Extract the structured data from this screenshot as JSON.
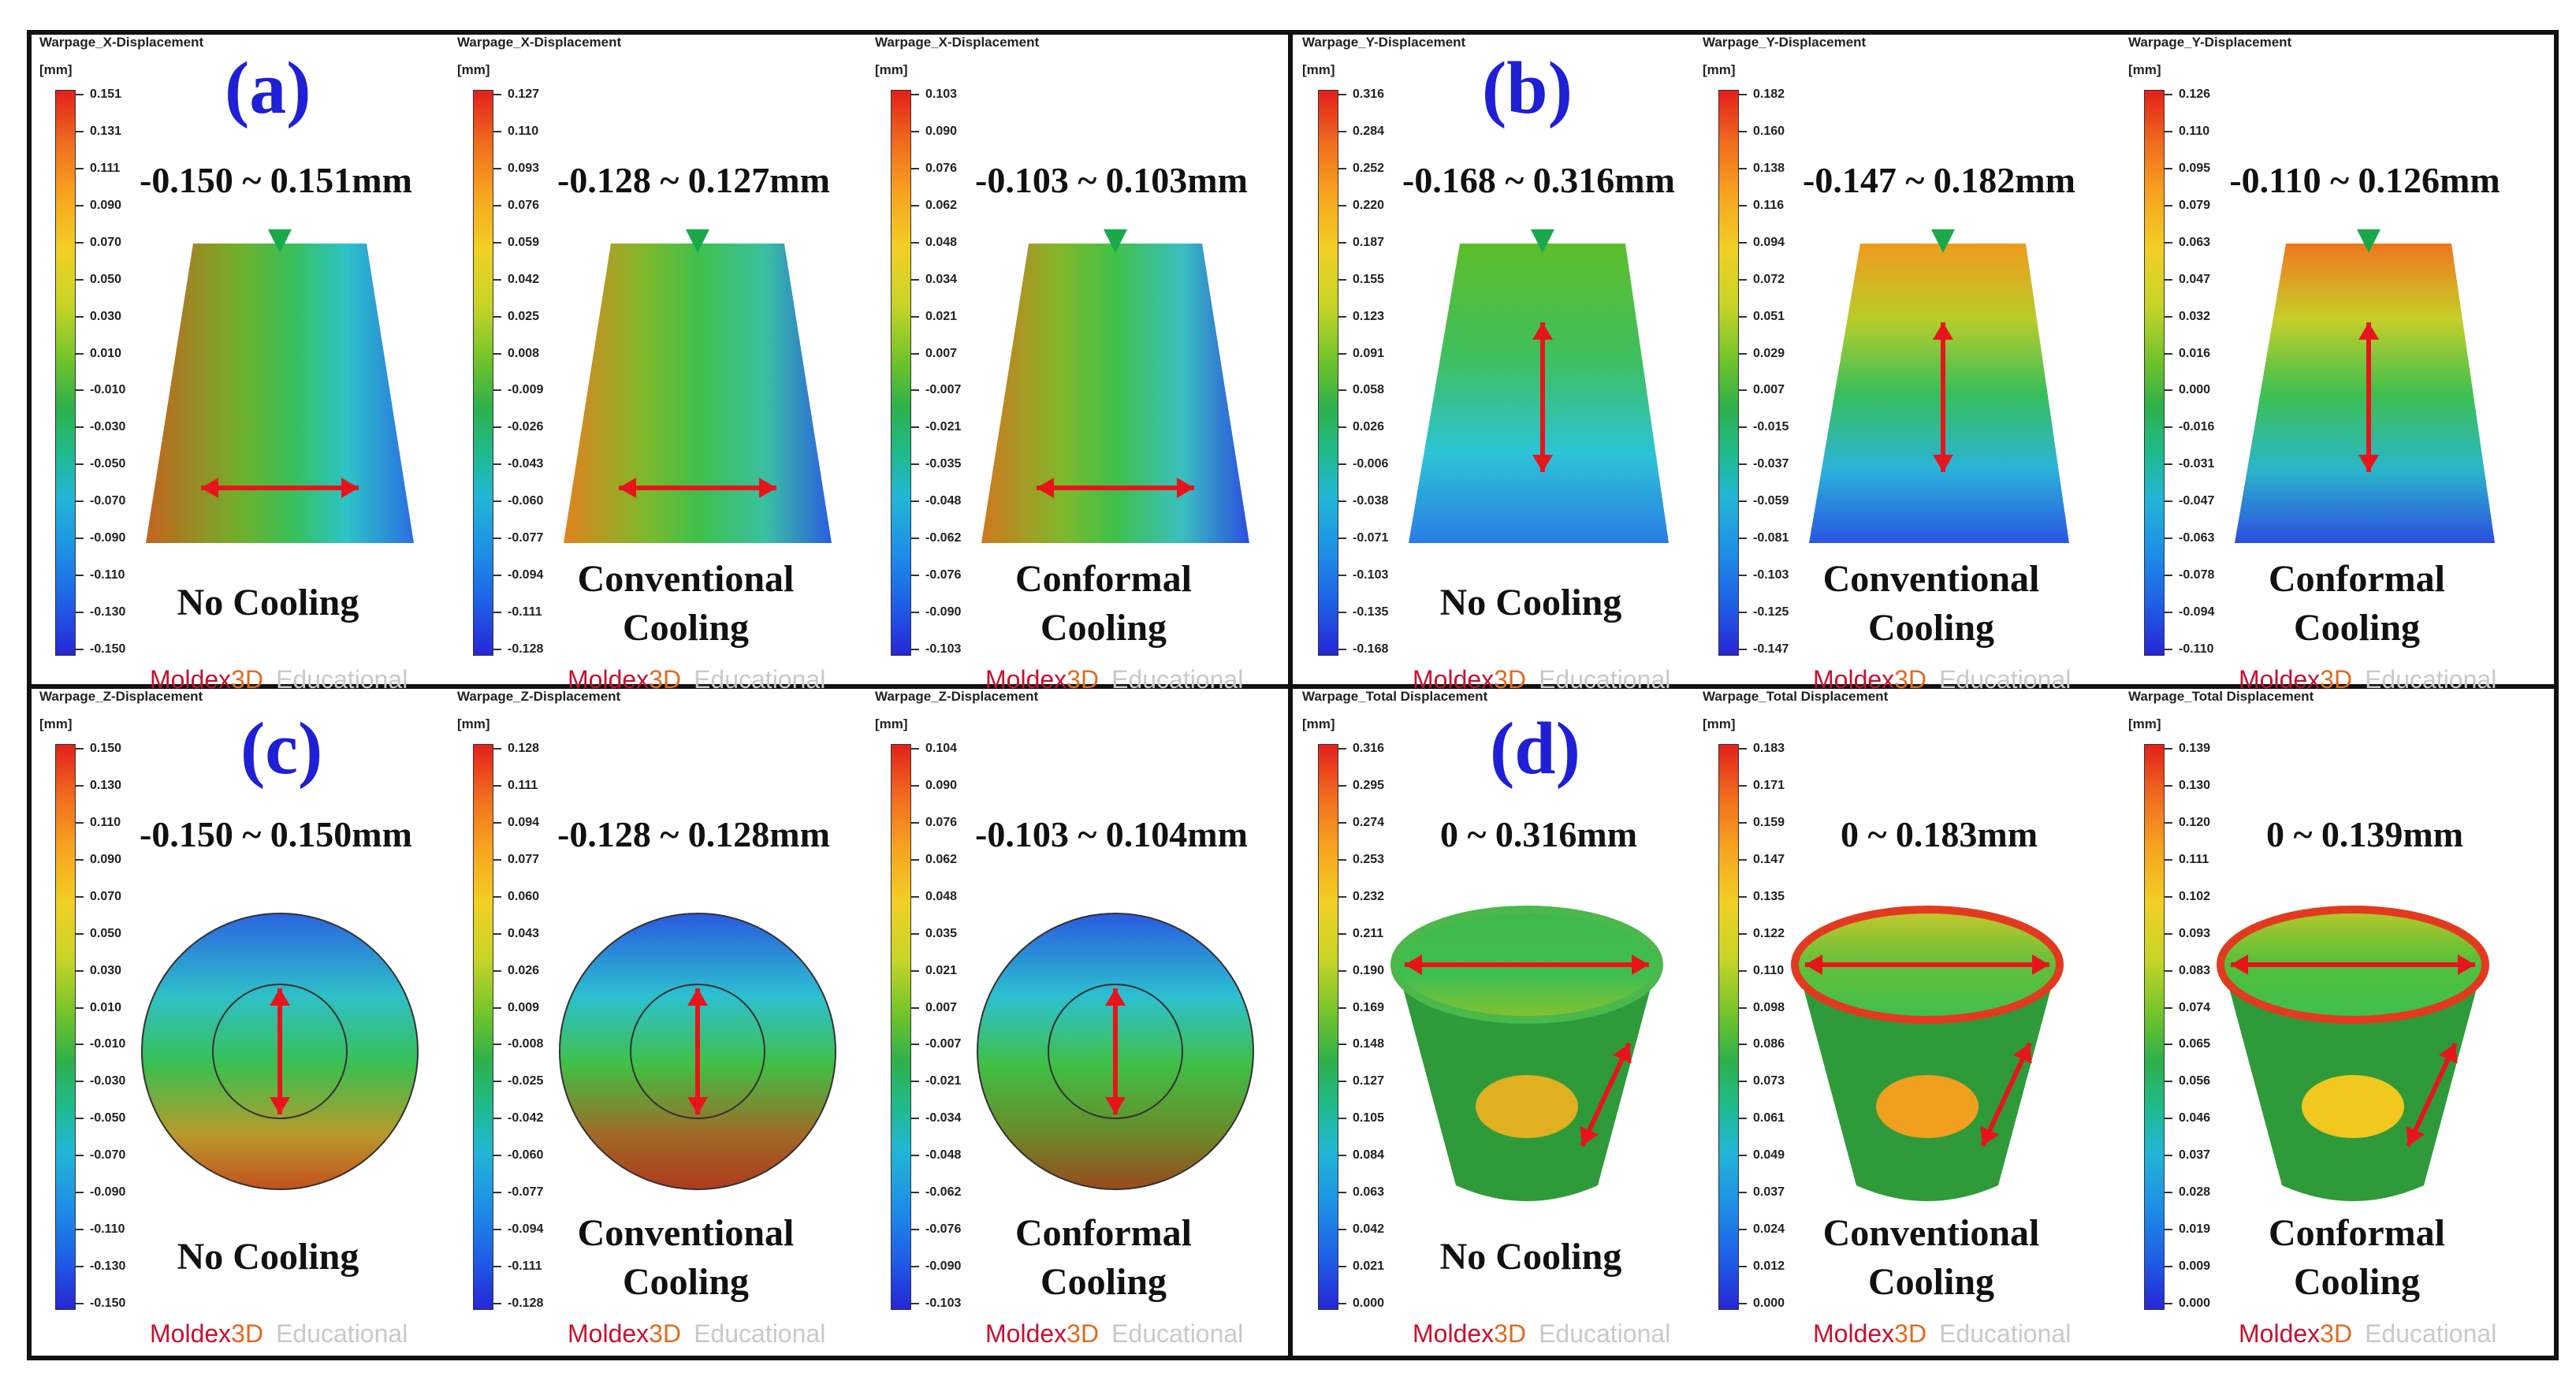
{
  "unit": "[mm]",
  "brand": {
    "main": "Moldex",
    "suffix": "3D",
    "edition": "Educational"
  },
  "quadrants": [
    {
      "letter": "(a)",
      "panels": [
        {
          "title": "Warpage_X-Displacement",
          "range": "-0.150 ~ 0.151mm",
          "label1": "No Cooling",
          "label2": "",
          "ticks": [
            "0.151",
            "0.131",
            "0.111",
            "0.090",
            "0.070",
            "0.050",
            "0.030",
            "0.010",
            "-0.010",
            "-0.030",
            "-0.050",
            "-0.070",
            "-0.090",
            "-0.110",
            "-0.130",
            "-0.150"
          ]
        },
        {
          "title": "Warpage_X-Displacement",
          "range": "-0.128 ~ 0.127mm",
          "label1": "Conventional",
          "label2": "Cooling",
          "ticks": [
            "0.127",
            "0.110",
            "0.093",
            "0.076",
            "0.059",
            "0.042",
            "0.025",
            "0.008",
            "-0.009",
            "-0.026",
            "-0.043",
            "-0.060",
            "-0.077",
            "-0.094",
            "-0.111",
            "-0.128"
          ]
        },
        {
          "title": "Warpage_X-Displacement",
          "range": "-0.103 ~ 0.103mm",
          "label1": "Conformal",
          "label2": "Cooling",
          "ticks": [
            "0.103",
            "0.090",
            "0.076",
            "0.062",
            "0.048",
            "0.034",
            "0.021",
            "0.007",
            "-0.007",
            "-0.021",
            "-0.035",
            "-0.048",
            "-0.062",
            "-0.076",
            "-0.090",
            "-0.103"
          ]
        }
      ]
    },
    {
      "letter": "(b)",
      "panels": [
        {
          "title": "Warpage_Y-Displacement",
          "range": "-0.168 ~ 0.316mm",
          "label1": "No Cooling",
          "label2": "",
          "ticks": [
            "0.316",
            "0.284",
            "0.252",
            "0.220",
            "0.187",
            "0.155",
            "0.123",
            "0.091",
            "0.058",
            "0.026",
            "-0.006",
            "-0.038",
            "-0.071",
            "-0.103",
            "-0.135",
            "-0.168"
          ]
        },
        {
          "title": "Warpage_Y-Displacement",
          "range": "-0.147 ~ 0.182mm",
          "label1": "Conventional",
          "label2": "Cooling",
          "ticks": [
            "0.182",
            "0.160",
            "0.138",
            "0.116",
            "0.094",
            "0.072",
            "0.051",
            "0.029",
            "0.007",
            "-0.015",
            "-0.037",
            "-0.059",
            "-0.081",
            "-0.103",
            "-0.125",
            "-0.147"
          ]
        },
        {
          "title": "Warpage_Y-Displacement",
          "range": "-0.110 ~ 0.126mm",
          "label1": "Conformal",
          "label2": "Cooling",
          "ticks": [
            "0.126",
            "0.110",
            "0.095",
            "0.079",
            "0.063",
            "0.047",
            "0.032",
            "0.016",
            "0.000",
            "-0.016",
            "-0.031",
            "-0.047",
            "-0.063",
            "-0.078",
            "-0.094",
            "-0.110"
          ]
        }
      ]
    },
    {
      "letter": "(c)",
      "panels": [
        {
          "title": "Warpage_Z-Displacement",
          "range": "-0.150 ~ 0.150mm",
          "label1": "No Cooling",
          "label2": "",
          "ticks": [
            "0.150",
            "0.130",
            "0.110",
            "0.090",
            "0.070",
            "0.050",
            "0.030",
            "0.010",
            "-0.010",
            "-0.030",
            "-0.050",
            "-0.070",
            "-0.090",
            "-0.110",
            "-0.130",
            "-0.150"
          ]
        },
        {
          "title": "Warpage_Z-Displacement",
          "range": "-0.128 ~ 0.128mm",
          "label1": "Conventional",
          "label2": "Cooling",
          "ticks": [
            "0.128",
            "0.111",
            "0.094",
            "0.077",
            "0.060",
            "0.043",
            "0.026",
            "0.009",
            "-0.008",
            "-0.025",
            "-0.042",
            "-0.060",
            "-0.077",
            "-0.094",
            "-0.111",
            "-0.128"
          ]
        },
        {
          "title": "Warpage_Z-Displacement",
          "range": "-0.103 ~ 0.104mm",
          "label1": "Conformal",
          "label2": "Cooling",
          "ticks": [
            "0.104",
            "0.090",
            "0.076",
            "0.062",
            "0.048",
            "0.035",
            "0.021",
            "0.007",
            "-0.007",
            "-0.021",
            "-0.034",
            "-0.048",
            "-0.062",
            "-0.076",
            "-0.090",
            "-0.103"
          ]
        }
      ]
    },
    {
      "letter": "(d)",
      "panels": [
        {
          "title": "Warpage_Total Displacement",
          "range": "0 ~ 0.316mm",
          "label1": "No Cooling",
          "label2": "",
          "ticks": [
            "0.316",
            "0.295",
            "0.274",
            "0.253",
            "0.232",
            "0.211",
            "0.190",
            "0.169",
            "0.148",
            "0.127",
            "0.105",
            "0.084",
            "0.063",
            "0.042",
            "0.021",
            "0.000"
          ]
        },
        {
          "title": "Warpage_Total Displacement",
          "range": "0 ~ 0.183mm",
          "label1": "Conventional",
          "label2": "Cooling",
          "ticks": [
            "0.183",
            "0.171",
            "0.159",
            "0.147",
            "0.135",
            "0.122",
            "0.110",
            "0.098",
            "0.086",
            "0.073",
            "0.061",
            "0.049",
            "0.037",
            "0.024",
            "0.012",
            "0.000"
          ]
        },
        {
          "title": "Warpage_Total Displacement",
          "range": "0 ~ 0.139mm",
          "label1": "Conformal",
          "label2": "Cooling",
          "ticks": [
            "0.139",
            "0.130",
            "0.120",
            "0.111",
            "0.102",
            "0.093",
            "0.083",
            "0.074",
            "0.065",
            "0.056",
            "0.046",
            "0.037",
            "0.028",
            "0.019",
            "0.009",
            "0.000"
          ]
        }
      ]
    }
  ]
}
